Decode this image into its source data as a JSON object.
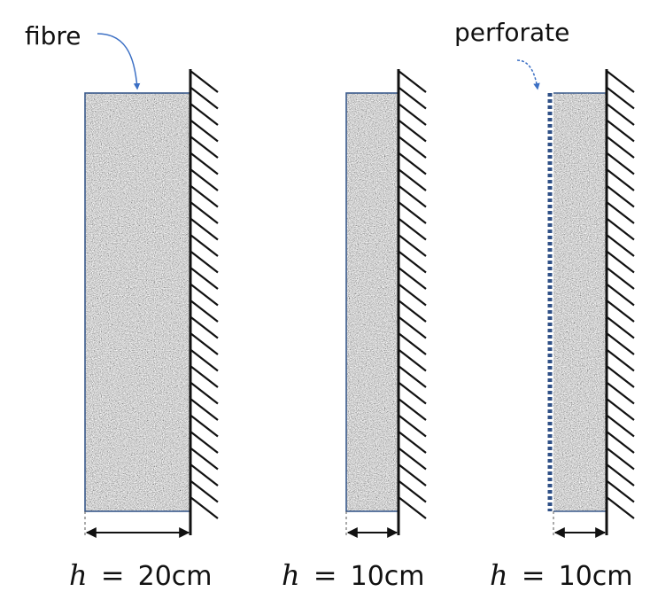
{
  "labels": {
    "fibre": "fibre",
    "perforate": "perforate"
  },
  "captions": [
    {
      "variable": "h",
      "equals": "=",
      "value": "20cm"
    },
    {
      "variable": "h",
      "equals": "=",
      "value": "10cm"
    },
    {
      "variable": "h",
      "equals": "=",
      "value": "10cm"
    }
  ],
  "colors": {
    "panel_border": "#3a5a8c",
    "arrow_accent": "#3b6fc4",
    "perforated_layer": "#2e4f86",
    "wall": "#111111",
    "dimension": "#111111"
  }
}
